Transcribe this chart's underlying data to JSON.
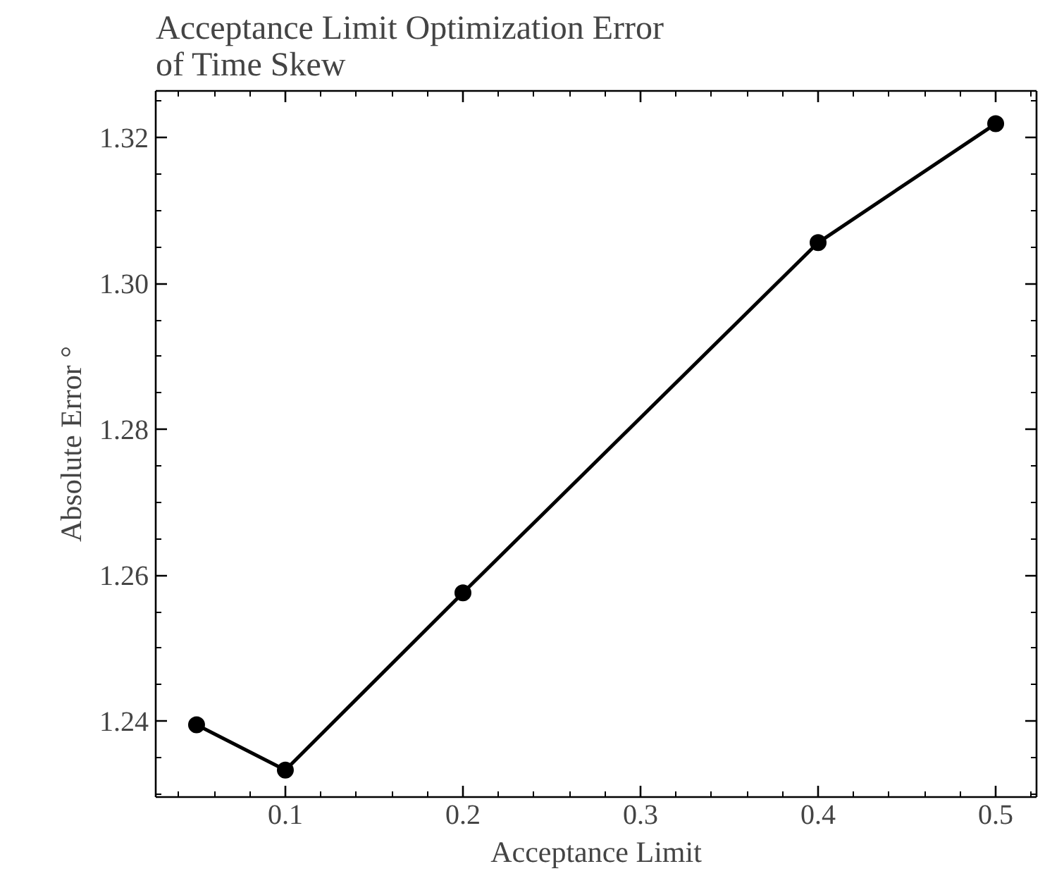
{
  "chart_data": {
    "type": "line",
    "title": "Acceptance Limit Optimization Error\nof Time Skew",
    "xlabel": "Acceptance Limit",
    "ylabel": "Absolute Error °",
    "x": [
      0.05,
      0.1,
      0.2,
      0.4,
      0.5
    ],
    "series": [
      {
        "color": "#000000",
        "values": [
          1.2395,
          1.2333,
          1.2576,
          1.3056,
          1.3219
        ]
      }
    ],
    "xlim": [
      0.027,
      0.523
    ],
    "ylim": [
      1.2296,
      1.3264
    ],
    "xticks": [
      0.1,
      0.2,
      0.3,
      0.4,
      0.5
    ],
    "yticks": [
      1.24,
      1.26,
      1.28,
      {
        "value": 1.3,
        "label": "1.30"
      },
      1.32
    ],
    "marker": "circle",
    "line_style": "solid"
  }
}
